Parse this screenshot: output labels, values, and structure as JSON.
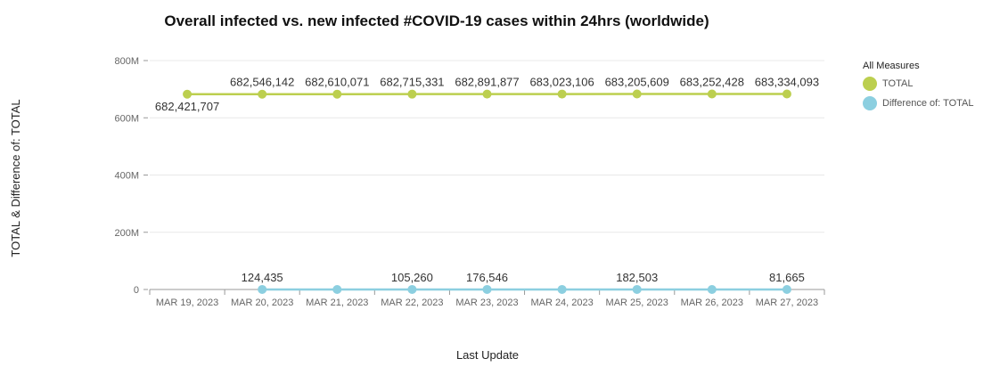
{
  "chart_data": {
    "type": "line",
    "title": "Overall infected vs. new infected #COVID-19 cases within 24hrs (worldwide)",
    "xlabel": "Last Update",
    "ylabel": "TOTAL & Difference of: TOTAL",
    "categories": [
      "MAR 19, 2023",
      "MAR 20, 2023",
      "MAR 21, 2023",
      "MAR 22, 2023",
      "MAR 23, 2023",
      "MAR 24, 2023",
      "MAR 25, 2023",
      "MAR 26, 2023",
      "MAR 27, 2023"
    ],
    "yticks": [
      0,
      200000000,
      400000000,
      600000000,
      800000000
    ],
    "ytick_labels": [
      "0",
      "200M",
      "400M",
      "600M",
      "800M"
    ],
    "ylim": [
      0,
      800000000
    ],
    "grid": true,
    "legend_title": "All Measures",
    "legend_position": "right",
    "series": [
      {
        "name": "TOTAL",
        "color": "#bccf4f",
        "values": [
          682421707,
          682546142,
          682610071,
          682715331,
          682891877,
          683023106,
          683205609,
          683252428,
          683334093
        ],
        "labels": [
          "682,421,707",
          "682,546,142",
          "682,610,071",
          "682,715,331",
          "682,891,877",
          "683,023,106",
          "683,205,609",
          "683,252,428",
          "683,334,093"
        ]
      },
      {
        "name": "Difference of: TOTAL",
        "color": "#8ccfe0",
        "values": [
          null,
          124435,
          63929,
          105260,
          176546,
          131229,
          182503,
          46819,
          81665
        ],
        "labels": [
          "",
          "124,435",
          "",
          "105,260",
          "176,546",
          "",
          "182,503",
          "",
          "81,665"
        ]
      }
    ]
  }
}
